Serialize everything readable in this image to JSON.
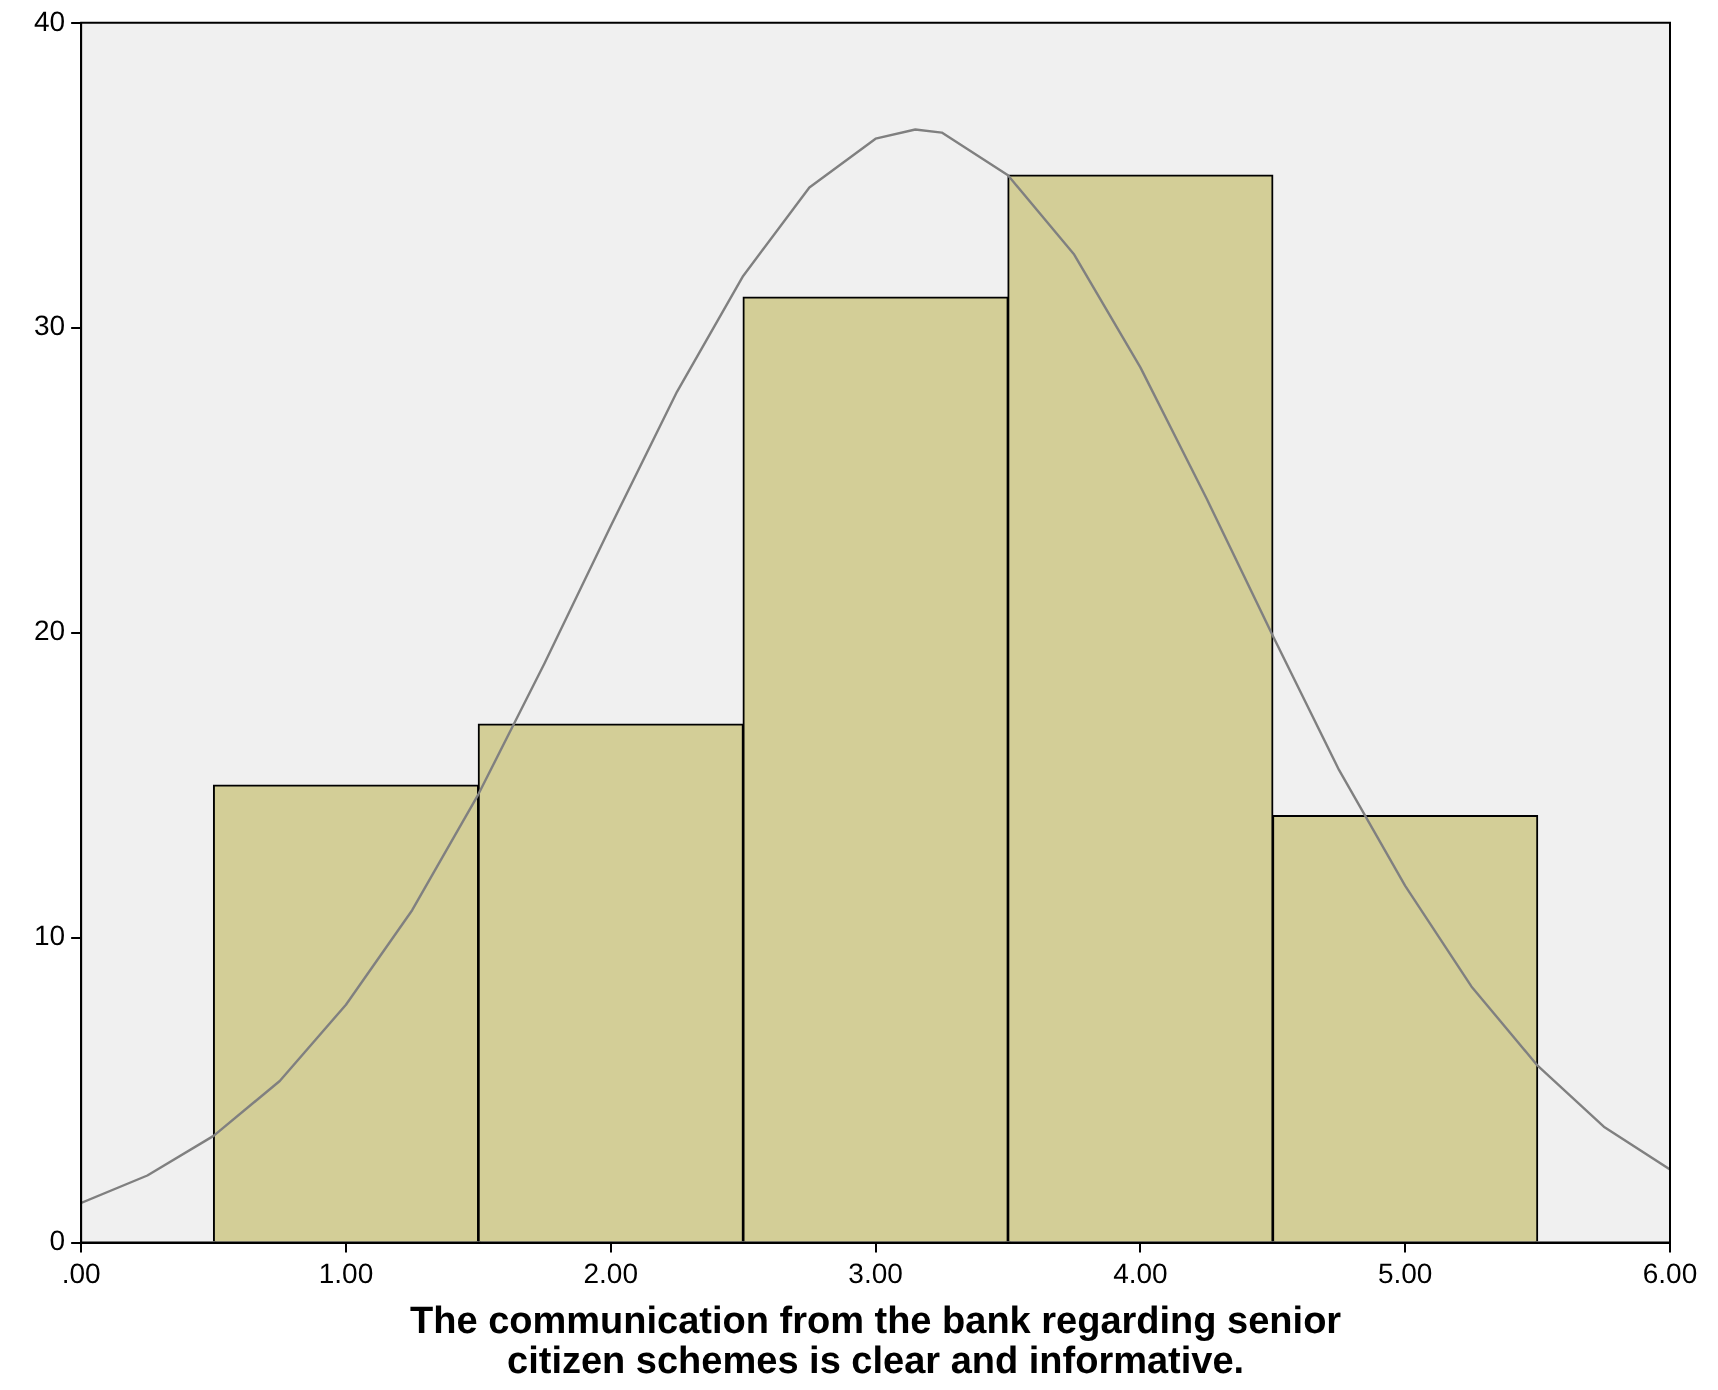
{
  "chart_data": {
    "type": "histogram",
    "xlabel": "The communication from the bank regarding senior citizen schemes is clear and informative.",
    "bins": [
      0.5,
      1.5,
      2.5,
      3.5,
      4.5,
      5.5
    ],
    "values": [
      15,
      17,
      31,
      35,
      14
    ],
    "color": "#d3ce97",
    "series": [
      {
        "type": "line",
        "color": "#808080",
        "x": [
          0,
          0.25,
          0.5,
          0.75,
          1,
          1.25,
          1.5,
          1.75,
          2,
          2.25,
          2.5,
          2.75,
          3,
          3.15,
          3.25,
          3.5,
          3.75,
          4,
          4.25,
          4.5,
          4.75,
          5,
          5.25,
          5.5,
          5.75,
          6
        ],
        "values": [
          1.3,
          2.2,
          3.5,
          5.3,
          7.8,
          10.9,
          14.7,
          19,
          23.5,
          27.9,
          31.7,
          34.6,
          36.2,
          36.5,
          36.4,
          35,
          32.4,
          28.7,
          24.4,
          19.9,
          15.5,
          11.7,
          8.4,
          5.8,
          3.8,
          2.4
        ]
      }
    ],
    "xlim": [
      0,
      6
    ],
    "xticks": [
      {
        "value": 0,
        "label": ".00"
      },
      {
        "value": 1,
        "label": "1.00"
      },
      {
        "value": 2,
        "label": "2.00"
      },
      {
        "value": 3,
        "label": "3.00"
      },
      {
        "value": 4,
        "label": "4.00"
      },
      {
        "value": 5,
        "label": "5.00"
      },
      {
        "value": 6,
        "label": "6.00"
      }
    ],
    "ylim": [
      0,
      40
    ],
    "yticks": [
      0,
      10,
      20,
      30,
      40
    ],
    "grid": false,
    "legend": false,
    "marker": "none",
    "line_style": "solid"
  }
}
